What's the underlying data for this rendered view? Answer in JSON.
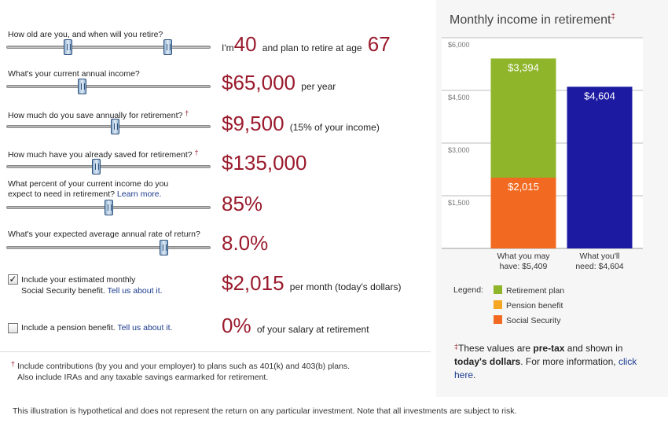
{
  "questions": {
    "age": {
      "label": "How old are you, and when will you retire?",
      "text_pre": "I'm",
      "current_age": "40",
      "text_mid": "and plan to retire at age",
      "retire_age": "67",
      "thumb1_fraction": 0.3,
      "thumb2_fraction": 0.79
    },
    "income": {
      "label": "What's your current annual income?",
      "value": "$65,000",
      "suffix": "per year",
      "thumb_fraction": 0.37
    },
    "save": {
      "label": "How much do you save annually for retirement?",
      "dagger": "†",
      "value": "$9,500",
      "suffix": "(15% of your income)",
      "thumb_fraction": 0.53
    },
    "saved": {
      "label": "How much have you already saved for retirement?",
      "dagger": "†",
      "value": "$135,000",
      "thumb_fraction": 0.44
    },
    "percent": {
      "label_line1": "What percent of your current income do you",
      "label_line2": "expect to need in retirement?",
      "link": "Learn more.",
      "value": "85%",
      "thumb_fraction": 0.5
    },
    "rate": {
      "label": "What's your expected average annual rate of return?",
      "value": "8.0%",
      "thumb_fraction": 0.77
    }
  },
  "social_security": {
    "checkbox_mark": "✓",
    "checked": true,
    "label_line1": "Include your estimated monthly",
    "label_line2": "Social Security benefit.",
    "link": "Tell us about it.",
    "value": "$2,015",
    "suffix": "per month (today's dollars)"
  },
  "pension": {
    "checked": false,
    "label": "Include a pension benefit.",
    "link": "Tell us about it.",
    "value": "0%",
    "suffix": "of your salary at retirement"
  },
  "footnote": {
    "dagger": "†",
    "line1": "Include contributions (by you and your employer) to plans such as 401(k) and 403(b) plans.",
    "line2": "Also include IRAs and any taxable savings earmarked for retirement."
  },
  "disclaimer": "This illustration is hypothetical and does not represent the return on any particular investment. Note that all investments are subject to risk.",
  "chart_panel": {
    "title": "Monthly income in retirement",
    "title_mark": "‡",
    "legend_label": "Legend:",
    "note_mark": "‡",
    "note_pre": "These values are ",
    "note_bold1": "pre-tax",
    "note_mid": " and shown in ",
    "note_bold2": "today's dollars",
    "note_post": ". For more information, ",
    "note_link": "click here",
    "note_end": "."
  },
  "colors": {
    "retirement_plan": "#8fb52b",
    "pension_benefit": "#f5a623",
    "social_security": "#f26a21",
    "need": "#1c1aa0",
    "accent_value": "#9a1b2d"
  },
  "chart_data": {
    "type": "bar",
    "stacked": true,
    "title": "Monthly income in retirement",
    "yticks": [
      "$6,000",
      "$4,500",
      "$3,000",
      "$1,500"
    ],
    "ytick_values": [
      6000,
      4500,
      3000,
      1500
    ],
    "ylim": [
      0,
      6000
    ],
    "grid": true,
    "legend_position": "bottom",
    "categories": [
      {
        "line1": "What you may",
        "line2": "have: $5,409"
      },
      {
        "line1": "What you'll",
        "line2": "need: $4,604"
      }
    ],
    "series": [
      {
        "name": "Social Security",
        "values": [
          2015,
          0
        ],
        "labels": [
          "$2,015",
          ""
        ]
      },
      {
        "name": "Pension benefit",
        "values": [
          0,
          0
        ],
        "labels": [
          "",
          ""
        ]
      },
      {
        "name": "Retirement plan",
        "values": [
          3394,
          0
        ],
        "labels": [
          "$3,394",
          ""
        ]
      }
    ],
    "need": {
      "values": [
        0,
        4604
      ],
      "labels": [
        "",
        "$4,604"
      ]
    },
    "legend": [
      "Retirement plan",
      "Pension benefit",
      "Social Security"
    ]
  }
}
